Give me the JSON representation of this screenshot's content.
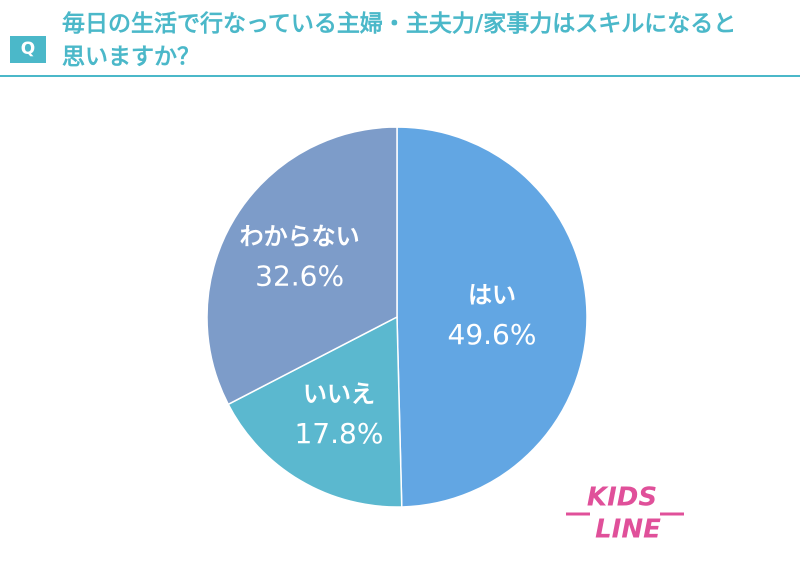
{
  "question_label": "Q",
  "chart_data": {
    "type": "pie",
    "title": "毎日の生活で行なっている主婦・主夫力/家事力はスキルになると思いますか？",
    "categories": [
      "はい",
      "いいえ",
      "わからない"
    ],
    "values": [
      49.6,
      17.8,
      32.6
    ],
    "value_labels": [
      "49.6%",
      "17.8%",
      "32.6%"
    ],
    "colors": [
      "#62a6e3",
      "#5bb8cf",
      "#7d9cc9"
    ]
  },
  "logo": [
    "KIDS",
    "LINE"
  ]
}
